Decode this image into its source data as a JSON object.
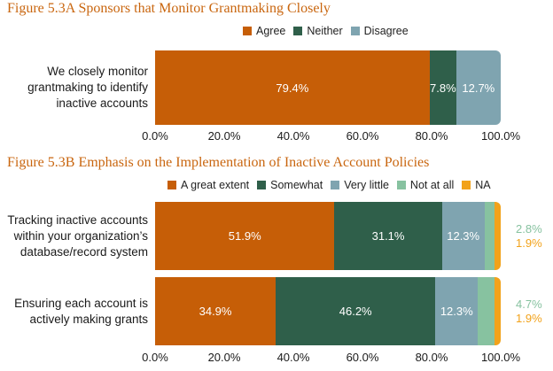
{
  "colors": {
    "title": "#c9660f",
    "Agree": "#c65e07",
    "Neither": "#2f5f4a",
    "Disagree": "#7fa4b0",
    "A great extent": "#c65e07",
    "Somewhat": "#2f5f4a",
    "Very little": "#7fa4b0",
    "Not at all": "#87c2a0",
    "NA": "#f2a21a"
  },
  "chart_data": [
    {
      "type": "bar",
      "orientation": "horizontal-stacked",
      "title": "Figure 5.3A Sponsors that Monitor Grantmaking Closely",
      "legend": [
        "Agree",
        "Neither",
        "Disagree"
      ],
      "categories": [
        "We closely monitor grantmaking to identify inactive accounts"
      ],
      "category_lines": [
        [
          "We closely monitor",
          "grantmaking to identify",
          "inactive accounts"
        ]
      ],
      "series": [
        {
          "name": "Agree",
          "values": [
            79.4
          ],
          "labels": [
            "79.4%"
          ]
        },
        {
          "name": "Neither",
          "values": [
            7.8
          ],
          "labels": [
            "7.8%"
          ]
        },
        {
          "name": "Disagree",
          "values": [
            12.7
          ],
          "labels": [
            "12.7%"
          ]
        }
      ],
      "xlim": [
        0,
        100
      ],
      "xticks": [
        "0.0%",
        "20.0%",
        "40.0%",
        "60.0%",
        "80.0%",
        "100.0%"
      ]
    },
    {
      "type": "bar",
      "orientation": "horizontal-stacked",
      "title": "Figure 5.3B Emphasis on the Implementation of Inactive Account Policies",
      "legend": [
        "A great extent",
        "Somewhat",
        "Very little",
        "Not at all",
        "NA"
      ],
      "categories": [
        "Tracking inactive accounts within your organization’s database/record system",
        "Ensuring each account is actively making grants"
      ],
      "category_lines": [
        [
          "Tracking inactive accounts",
          "within your organization’s",
          "database/record system"
        ],
        [
          "Ensuring each account is",
          "actively making grants"
        ]
      ],
      "series": [
        {
          "name": "A great extent",
          "values": [
            51.9,
            34.9
          ],
          "labels": [
            "51.9%",
            "34.9%"
          ]
        },
        {
          "name": "Somewhat",
          "values": [
            31.1,
            46.2
          ],
          "labels": [
            "31.1%",
            "46.2%"
          ]
        },
        {
          "name": "Very little",
          "values": [
            12.3,
            12.3
          ],
          "labels": [
            "12.3%",
            "12.3%"
          ]
        },
        {
          "name": "Not at all",
          "values": [
            2.8,
            4.7
          ],
          "labels": [
            "2.8%",
            "4.7%"
          ]
        },
        {
          "name": "NA",
          "values": [
            1.9,
            1.9
          ],
          "labels": [
            "1.9%",
            "1.9%"
          ]
        }
      ],
      "outside_labels": [
        "Not at all",
        "NA"
      ],
      "xlim": [
        0,
        100
      ],
      "xticks": [
        "0.0%",
        "20.0%",
        "40.0%",
        "60.0%",
        "80.0%",
        "100.0%"
      ]
    }
  ]
}
